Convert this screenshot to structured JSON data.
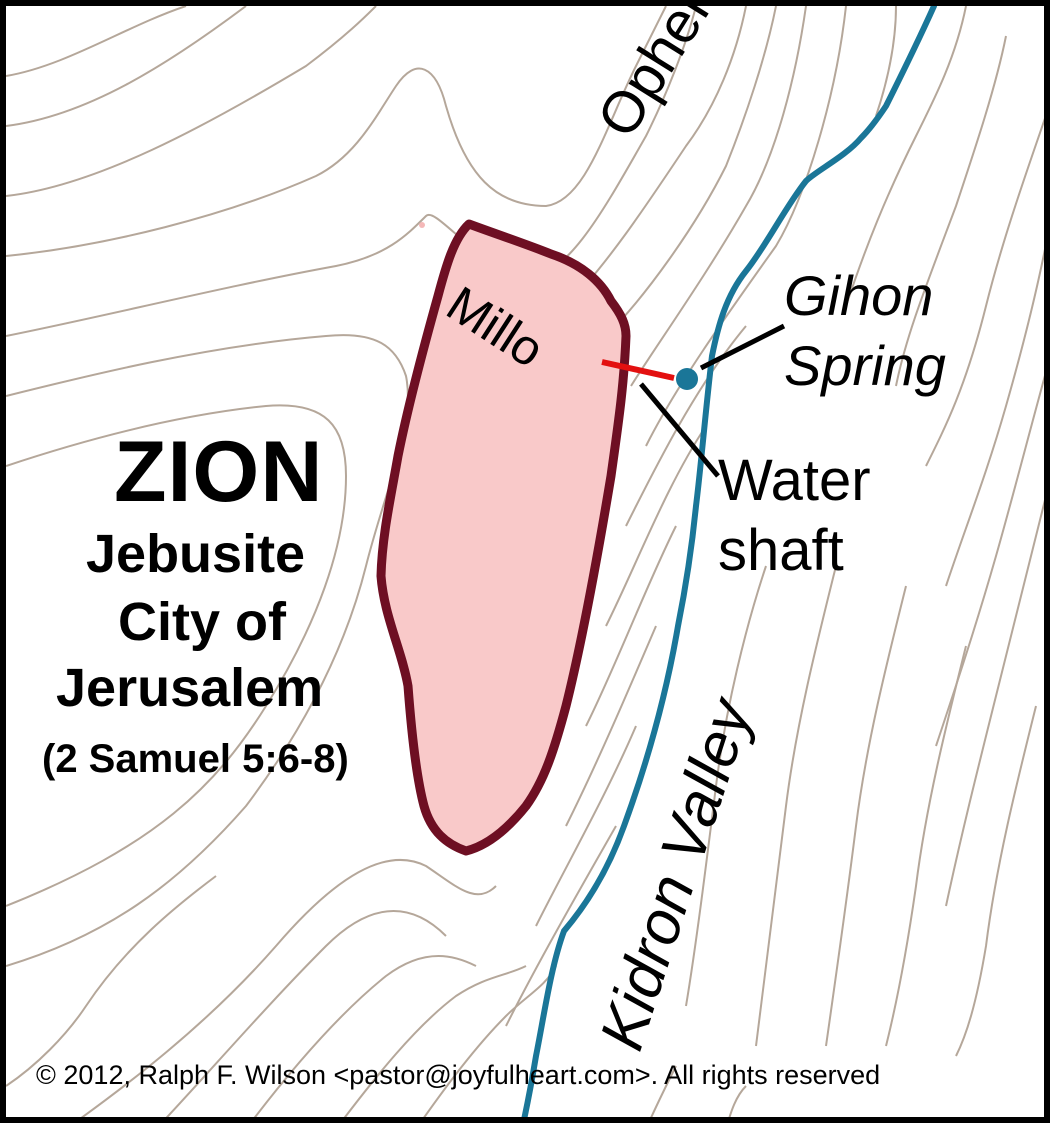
{
  "labels": {
    "zion_title": "ZION",
    "zion_sub_line1": "Jebusite",
    "zion_sub_line2": "City of",
    "zion_sub_line3": "Jerusalem",
    "scripture_ref": "(2 Samuel 5:6-8)",
    "ophel": "Ophel",
    "millo": "Millo",
    "gihon_line1": "Gihon",
    "gihon_line2": "Spring",
    "water_shaft_line1": "Water",
    "water_shaft_line2": "shaft",
    "kidron_valley": "Kidron Valley",
    "copyright": "© 2012, Ralph F. Wilson <pastor@joyfulheart.com>. All rights reserved"
  },
  "colors": {
    "background": "#ffffff",
    "border": "#000000",
    "contour": "#b5a79a",
    "city_outline": "#6e0f23",
    "city_fill": "#f9c9c9",
    "river": "#1a7698",
    "spring_dot": "#1a7698",
    "water_shaft": "#e31010",
    "leader_lines": "#000000"
  }
}
